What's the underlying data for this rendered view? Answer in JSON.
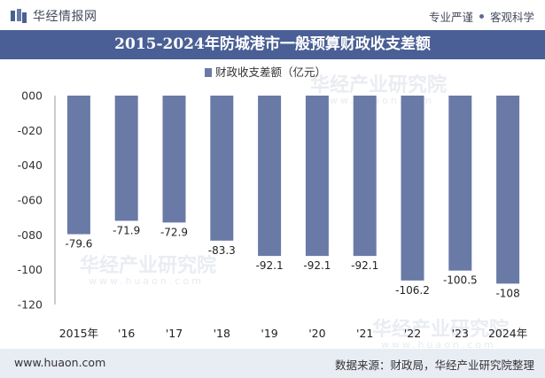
{
  "header": {
    "brand": "华经情报网",
    "tag1": "专业严谨",
    "tag2": "客观科学"
  },
  "title": "2015-2024年防城港市一般预算财政收支差额",
  "chart_data": {
    "type": "bar",
    "title": "2015-2024年防城港市一般预算财政收支差额",
    "categories": [
      "2015年",
      "'16",
      "'17",
      "'18",
      "'19",
      "'20",
      "'21",
      "'22",
      "'23",
      "2024年"
    ],
    "series": [
      {
        "name": "财政收支差额（亿元）",
        "values": [
          -79.6,
          -71.9,
          -72.9,
          -83.3,
          -92.1,
          -92.1,
          -92.1,
          -106.2,
          -100.5,
          -108
        ]
      }
    ],
    "value_labels": [
      "-79.6",
      "-71.9",
      "-72.9",
      "-83.3",
      "-92.1",
      "-92.1",
      "-92.1",
      "-106.2",
      "-100.5",
      "-108"
    ],
    "yticks": [
      "000",
      "-020",
      "-040",
      "-060",
      "-080",
      "-100",
      "-120"
    ],
    "ylim": [
      -120,
      0
    ],
    "legend_position": "top",
    "grid": false,
    "bar_color": "#6a7aa6"
  },
  "footer": {
    "url": "www.huaon.com",
    "source": "数据来源：财政局，华经产业研究院整理"
  },
  "watermark": {
    "text": "华经产业研究院",
    "url": "www.huaon.com"
  }
}
